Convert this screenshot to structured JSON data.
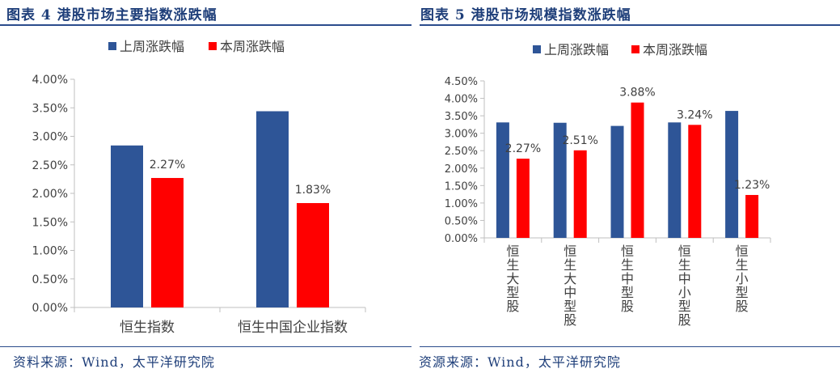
{
  "left": {
    "title": "图表 4 港股市场主要指数涨跌幅",
    "source": "资料来源：Wind，太平洋研究院"
  },
  "right": {
    "title": "图表 5 港股市场规模指数涨跌幅",
    "source": "资源来源：Wind，太平洋研究院"
  },
  "colors": {
    "series1": "#2e5597",
    "series2": "#ff0000",
    "title": "#1f3f7a",
    "axis": "#bfbfbf"
  },
  "chart_data": [
    {
      "type": "bar",
      "categories": [
        "恒生指数",
        "恒生中国企业指数"
      ],
      "series": [
        {
          "name": "上周涨跌幅",
          "values": [
            2.84,
            3.44
          ],
          "labels": [
            "",
            ""
          ]
        },
        {
          "name": "本周涨跌幅",
          "values": [
            2.27,
            1.83
          ],
          "labels": [
            "2.27%",
            "1.83%"
          ]
        }
      ],
      "ylim": [
        0,
        4
      ],
      "yticks": [
        "0.00%",
        "0.50%",
        "1.00%",
        "1.50%",
        "2.00%",
        "2.50%",
        "3.00%",
        "3.50%",
        "4.00%"
      ],
      "legend": "top-center",
      "grid": false
    },
    {
      "type": "bar",
      "categories": [
        "恒生大型股",
        "恒生大中型股",
        "恒生中型股",
        "恒生中小型股",
        "恒生小型股"
      ],
      "series": [
        {
          "name": "上周涨跌幅",
          "values": [
            3.31,
            3.3,
            3.21,
            3.31,
            3.64
          ],
          "labels": [
            "",
            "",
            "",
            "",
            ""
          ]
        },
        {
          "name": "本周涨跌幅",
          "values": [
            2.27,
            2.51,
            3.88,
            3.24,
            1.23
          ],
          "labels": [
            "2.27%",
            "2.51%",
            "3.88%",
            "3.24%",
            "1.23%"
          ]
        }
      ],
      "ylim": [
        0,
        4.5
      ],
      "yticks": [
        "0.00%",
        "0.50%",
        "1.00%",
        "1.50%",
        "2.00%",
        "2.50%",
        "3.00%",
        "3.50%",
        "4.00%",
        "4.50%"
      ],
      "legend": "top-center",
      "grid": false
    }
  ]
}
